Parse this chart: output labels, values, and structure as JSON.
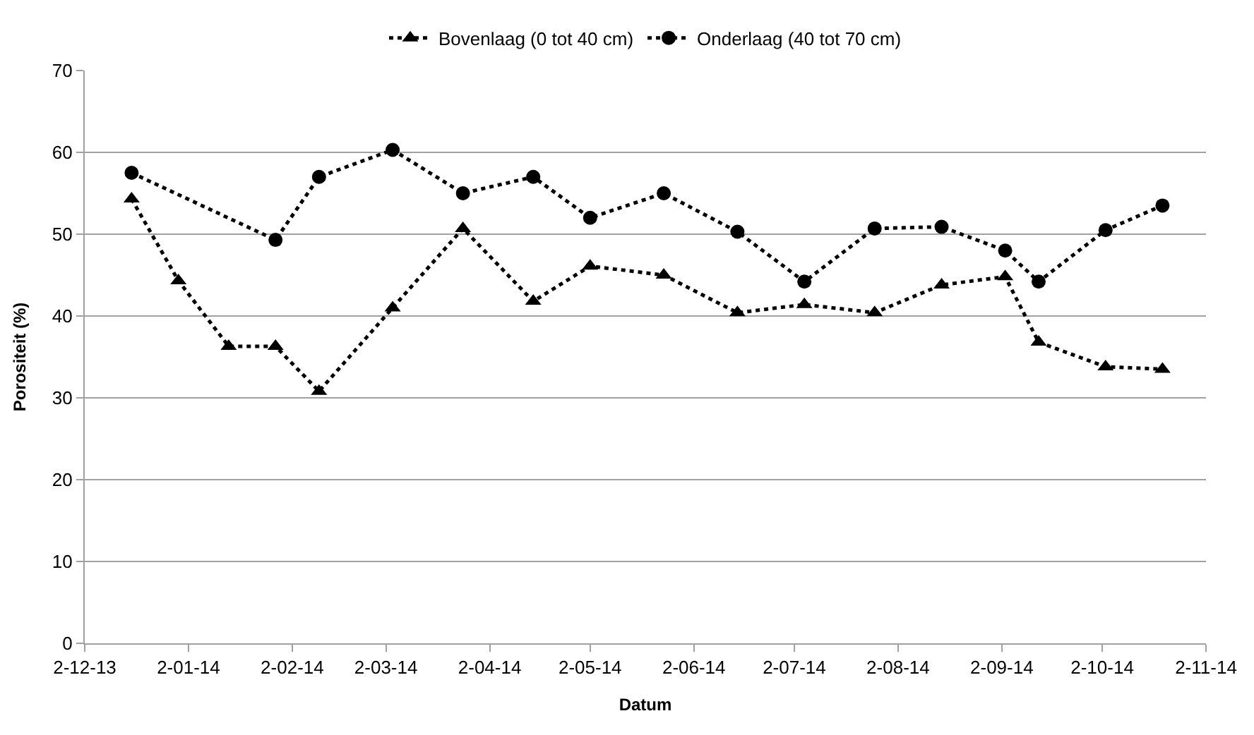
{
  "chart_data": {
    "type": "line",
    "xlabel": "Datum",
    "ylabel": "Porositeit (%)",
    "x": [
      "2013-12-16",
      "2013-12-30",
      "2014-01-14",
      "2014-01-28",
      "2014-02-10",
      "2014-03-04",
      "2014-03-25",
      "2014-04-15",
      "2014-05-02",
      "2014-05-24",
      "2014-06-15",
      "2014-07-05",
      "2014-07-26",
      "2014-08-15",
      "2014-09-03",
      "2014-09-13",
      "2014-10-03",
      "2014-10-20"
    ],
    "series": [
      {
        "name": "Bovenlaag (0 tot 40 cm)",
        "color": "#000000",
        "marker": "triangle",
        "values": [
          54.3,
          44.3,
          36.3,
          36.3,
          30.8,
          41,
          50.7,
          41.8,
          46.1,
          45,
          40.4,
          41.4,
          40.4,
          43.8,
          44.8,
          36.8,
          33.8,
          33.5
        ]
      },
      {
        "name": "Onderlaag (40 tot 70 cm)",
        "color": "#000000",
        "marker": "circle",
        "x": [
          "2013-12-16",
          "2014-01-28",
          "2014-02-10",
          "2014-03-04",
          "2014-03-25",
          "2014-04-15",
          "2014-05-02",
          "2014-05-24",
          "2014-06-15",
          "2014-07-05",
          "2014-07-26",
          "2014-08-15",
          "2014-09-03",
          "2014-09-13",
          "2014-10-03",
          "2014-10-20"
        ],
        "values": [
          57.5,
          49.3,
          57,
          60.3,
          55,
          57,
          52,
          55,
          50.3,
          44.2,
          50.7,
          50.9,
          48,
          44.2,
          50.5,
          53.5
        ]
      }
    ],
    "xlim": [
      "2013-12-02",
      "2014-11-02"
    ],
    "xticks": [
      {
        "value": "2013-12-02",
        "label": "2-12-13"
      },
      {
        "value": "2014-01-02",
        "label": "2-01-14"
      },
      {
        "value": "2014-02-02",
        "label": "2-02-14"
      },
      {
        "value": "2014-03-02",
        "label": "2-03-14"
      },
      {
        "value": "2014-04-02",
        "label": "2-04-14"
      },
      {
        "value": "2014-05-02",
        "label": "2-05-14"
      },
      {
        "value": "2014-06-02",
        "label": "2-06-14"
      },
      {
        "value": "2014-07-02",
        "label": "2-07-14"
      },
      {
        "value": "2014-08-02",
        "label": "2-08-14"
      },
      {
        "value": "2014-09-02",
        "label": "2-09-14"
      },
      {
        "value": "2014-10-02",
        "label": "2-10-14"
      },
      {
        "value": "2014-11-02",
        "label": "2-11-14"
      }
    ],
    "ylim": [
      0,
      70
    ],
    "yticks": [
      0,
      10,
      20,
      30,
      40,
      50,
      60,
      70
    ],
    "grid": "y",
    "legend": "top",
    "line_style": "dotted"
  }
}
